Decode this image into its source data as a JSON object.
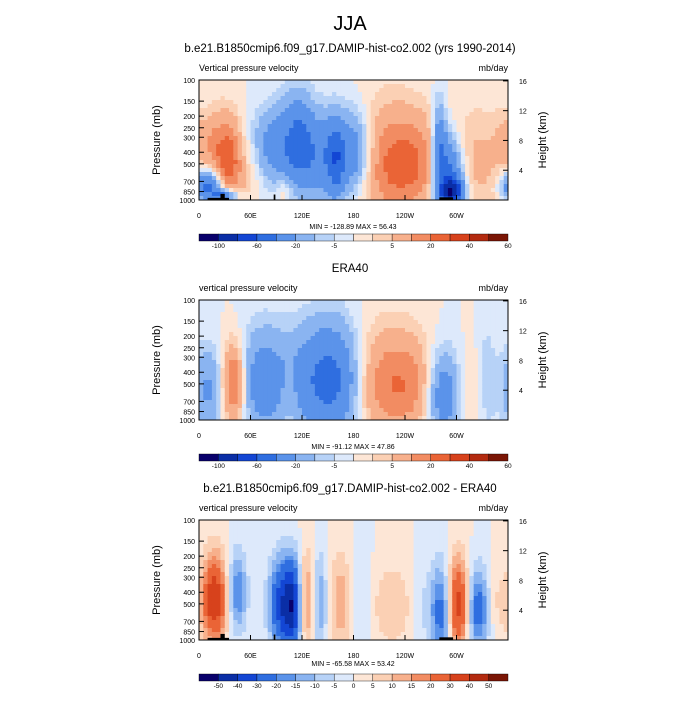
{
  "page": {
    "title": "JJA"
  },
  "colorbars": {
    "full": {
      "labels": [
        "-100",
        "-60",
        "-20",
        "-5",
        "5",
        "20",
        "40",
        "60"
      ],
      "colors": [
        "#08006b",
        "#0a2ea6",
        "#1346d4",
        "#2f6ee0",
        "#5b93ea",
        "#8ab4f1",
        "#b7d2f7",
        "#dde9fb",
        "#fde6d6",
        "#fbd0b4",
        "#f7b08c",
        "#f28c62",
        "#ea6436",
        "#d7421c",
        "#b32a0f",
        "#7a1505"
      ]
    },
    "diff": {
      "labels": [
        "-50",
        "-40",
        "-30",
        "-20",
        "-15",
        "-10",
        "-5",
        "0",
        "5",
        "10",
        "15",
        "20",
        "30",
        "40",
        "50"
      ],
      "colors": [
        "#08006b",
        "#0a2ea6",
        "#1346d4",
        "#2f6ee0",
        "#5b93ea",
        "#8ab4f1",
        "#b7d2f7",
        "#dde9fb",
        "#fde6d6",
        "#fbd0b4",
        "#f7b08c",
        "#f28c62",
        "#ea6436",
        "#d7421c",
        "#b32a0f",
        "#7a1505"
      ]
    }
  },
  "chart_data": [
    {
      "type": "heatmap",
      "title": "b.e21.B1850cmip6.f09_g17.DAMIP-hist-co2.002 (yrs 1990-2014)",
      "left_label": "Vertical pressure velocity",
      "units": "mb/day",
      "ylabel": "Pressure (mb)",
      "y2label": "Height (km)",
      "xticks": [
        "0",
        "60E",
        "120E",
        "180",
        "120W",
        "60W"
      ],
      "yticks": [
        "100",
        "150",
        "200",
        "250",
        "300",
        "400",
        "500",
        "700",
        "850",
        "1000"
      ],
      "y2ticks": [
        "16",
        "12",
        "8",
        "4"
      ],
      "stats": "MIN = -128.89  MAX = 56.43",
      "colorbar": "full",
      "terrain": true,
      "blobs": [
        {
          "lon": 150,
          "p": 380,
          "rx": 40,
          "rp": 230,
          "v": -45
        },
        {
          "lon": 115,
          "p": 250,
          "rx": 12,
          "rp": 150,
          "v": -40
        },
        {
          "lon": 160,
          "p": 420,
          "rx": 7,
          "rp": 220,
          "v": -35
        },
        {
          "lon": 85,
          "p": 300,
          "rx": 15,
          "rp": 150,
          "v": -25
        },
        {
          "lon": 183,
          "p": 350,
          "rx": 12,
          "rp": 200,
          "v": -20
        },
        {
          "lon": 290,
          "p": 600,
          "rx": 12,
          "rp": 350,
          "v": -60
        },
        {
          "lon": 280,
          "p": 300,
          "rx": 6,
          "rp": 180,
          "v": -45
        },
        {
          "lon": 295,
          "p": 850,
          "rx": 9,
          "rp": 150,
          "v": -70
        },
        {
          "lon": 10,
          "p": 760,
          "rx": 12,
          "rp": 150,
          "v": -50
        },
        {
          "lon": 30,
          "p": 920,
          "rx": 10,
          "rp": 80,
          "v": -50
        },
        {
          "lon": 5,
          "p": 300,
          "rx": 12,
          "rp": 100,
          "v": 18
        },
        {
          "lon": 36,
          "p": 420,
          "rx": 10,
          "rp": 250,
          "v": 40
        },
        {
          "lon": 22,
          "p": 350,
          "rx": 8,
          "rp": 200,
          "v": 15
        },
        {
          "lon": 235,
          "p": 430,
          "rx": 38,
          "rp": 300,
          "v": 38
        },
        {
          "lon": 215,
          "p": 300,
          "rx": 30,
          "rp": 300,
          "v": 12
        },
        {
          "lon": 330,
          "p": 400,
          "rx": 30,
          "rp": 350,
          "v": 12
        },
        {
          "lon": 100,
          "p": 800,
          "rx": 8,
          "rp": 200,
          "v": 12
        },
        {
          "lon": 60,
          "p": 600,
          "rx": 12,
          "rp": 300,
          "v": 8
        }
      ]
    },
    {
      "type": "heatmap",
      "title": "ERA40",
      "left_label": "vertical pressure velocity",
      "units": "mb/day",
      "ylabel": "Pressure (mb)",
      "y2label": "Height (km)",
      "xticks": [
        "0",
        "60E",
        "120E",
        "180",
        "120W",
        "60W"
      ],
      "yticks": [
        "100",
        "150",
        "200",
        "250",
        "300",
        "400",
        "500",
        "700",
        "850",
        "1000"
      ],
      "y2ticks": [
        "16",
        "12",
        "8",
        "4"
      ],
      "stats": "MIN = -91.12  MAX = 47.86",
      "colorbar": "full",
      "terrain": false,
      "blobs": [
        {
          "lon": 75,
          "p": 400,
          "rx": 20,
          "rp": 300,
          "v": -35
        },
        {
          "lon": 140,
          "p": 380,
          "rx": 25,
          "rp": 300,
          "v": -42
        },
        {
          "lon": 165,
          "p": 380,
          "rx": 20,
          "rp": 300,
          "v": -30
        },
        {
          "lon": 10,
          "p": 500,
          "rx": 15,
          "rp": 300,
          "v": -25
        },
        {
          "lon": 285,
          "p": 550,
          "rx": 14,
          "rp": 350,
          "v": -40
        },
        {
          "lon": 335,
          "p": 400,
          "rx": 8,
          "rp": 300,
          "v": -15
        },
        {
          "lon": 40,
          "p": 450,
          "rx": 10,
          "rp": 250,
          "v": 45
        },
        {
          "lon": 215,
          "p": 400,
          "rx": 35,
          "rp": 330,
          "v": 25
        },
        {
          "lon": 245,
          "p": 450,
          "rx": 25,
          "rp": 300,
          "v": 15
        },
        {
          "lon": 320,
          "p": 500,
          "rx": 25,
          "rp": 300,
          "v": 8
        },
        {
          "lon": 105,
          "p": 600,
          "rx": 7,
          "rp": 250,
          "v": 8
        }
      ]
    },
    {
      "type": "heatmap",
      "title": "b.e21.B1850cmip6.f09_g17.DAMIP-hist-co2.002 - ERA40",
      "left_label": "vertical pressure velocity",
      "units": "mb/day",
      "ylabel": "Pressure (mb)",
      "y2label": "Height (km)",
      "xticks": [
        "0",
        "60E",
        "120E",
        "180",
        "120W",
        "60W"
      ],
      "yticks": [
        "100",
        "150",
        "200",
        "250",
        "300",
        "400",
        "500",
        "700",
        "850",
        "1000"
      ],
      "y2ticks": [
        "16",
        "12",
        "8",
        "4"
      ],
      "stats": "MIN = -65.58  MAX = 53.42",
      "colorbar": "diff",
      "terrain": true,
      "blobs": [
        {
          "lon": 18,
          "p": 400,
          "rx": 10,
          "rp": 250,
          "v": 45
        },
        {
          "lon": 45,
          "p": 350,
          "rx": 8,
          "rp": 200,
          "v": -25
        },
        {
          "lon": 95,
          "p": 450,
          "rx": 10,
          "rp": 300,
          "v": -35
        },
        {
          "lon": 110,
          "p": 450,
          "rx": 8,
          "rp": 300,
          "v": -45
        },
        {
          "lon": 125,
          "p": 400,
          "rx": 8,
          "rp": 300,
          "v": 25
        },
        {
          "lon": 140,
          "p": 400,
          "rx": 7,
          "rp": 300,
          "v": -20
        },
        {
          "lon": 165,
          "p": 400,
          "rx": 10,
          "rp": 300,
          "v": 15
        },
        {
          "lon": 190,
          "p": 400,
          "rx": 12,
          "rp": 300,
          "v": -10
        },
        {
          "lon": 220,
          "p": 450,
          "rx": 30,
          "rp": 300,
          "v": 10
        },
        {
          "lon": 260,
          "p": 450,
          "rx": 10,
          "rp": 300,
          "v": -8
        },
        {
          "lon": 285,
          "p": 500,
          "rx": 10,
          "rp": 350,
          "v": -35
        },
        {
          "lon": 300,
          "p": 450,
          "rx": 10,
          "rp": 300,
          "v": 48
        },
        {
          "lon": 325,
          "p": 500,
          "rx": 10,
          "rp": 300,
          "v": -30
        },
        {
          "lon": 345,
          "p": 450,
          "rx": 12,
          "rp": 250,
          "v": 8
        }
      ]
    }
  ]
}
